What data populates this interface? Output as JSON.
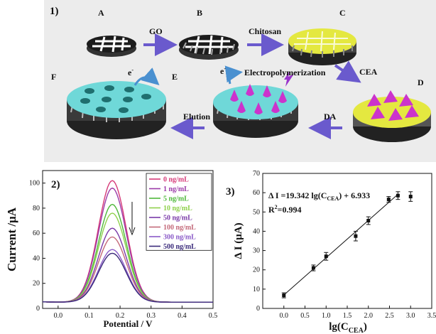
{
  "panel1": {
    "label": "1)",
    "steps": {
      "a": "A",
      "b": "B",
      "c": "C",
      "d": "D",
      "e": "E",
      "f": "F"
    },
    "arrows": {
      "a_b": "GO",
      "b_c": "Chitosan",
      "c_d": "CEA",
      "e_label": "Electropolymerization",
      "d_e": "DA",
      "e_f": "Elution"
    },
    "electron": "e",
    "electron_sup": "-",
    "colors": {
      "background": "#ececec",
      "electrode": "#1c1c1c",
      "chitosan": "#e4e840",
      "polymer": "#6fd8d8",
      "molecule": "#cc33cc",
      "arrow": "#6a5acd"
    }
  },
  "chart_data": [
    {
      "type": "line",
      "panel_label": "2)",
      "xlabel": "Potential / V",
      "ylabel": "Current /μA",
      "xlim": [
        -0.05,
        0.5
      ],
      "ylim": [
        0,
        110
      ],
      "x_ticks": [
        "0.0",
        "0.1",
        "0.2",
        "0.3",
        "0.4",
        "0.5"
      ],
      "y_ticks": [
        "0",
        "20",
        "40",
        "60",
        "80",
        "100"
      ],
      "legend_position": "top-right",
      "annotation": "arrow pointing down (decreasing peak current)",
      "series": [
        {
          "name": "0 ng/mL",
          "color": "#d63a78",
          "peak": 102,
          "baseline": 5
        },
        {
          "name": "1 ng/mL",
          "color": "#9b3aa8",
          "peak": 96,
          "baseline": 5
        },
        {
          "name": "5 ng/mL",
          "color": "#4eb83a",
          "peak": 83,
          "baseline": 5
        },
        {
          "name": "10 ng/mL",
          "color": "#8fd14c",
          "peak": 76,
          "baseline": 5
        },
        {
          "name": "50 ng/mL",
          "color": "#7a3aa8",
          "peak": 64,
          "baseline": 5
        },
        {
          "name": "100 ng/mL",
          "color": "#c46a7a",
          "peak": 57,
          "baseline": 5
        },
        {
          "name": "300 ng/mL",
          "color": "#8a5ac8",
          "peak": 47,
          "baseline": 5
        },
        {
          "name": "500 ng/mL",
          "color": "#3a2a7a",
          "peak": 44,
          "baseline": 5
        }
      ]
    },
    {
      "type": "scatter",
      "panel_label": "3)",
      "xlabel_main": "lg(C",
      "xlabel_sub": "CEA",
      "xlabel_end": ")",
      "ylabel": "Δ I (μA)",
      "xlim": [
        -0.5,
        3.5
      ],
      "ylim": [
        0,
        70
      ],
      "x_ticks": [
        "0.0",
        "0.5",
        "1.0",
        "1.5",
        "2.0",
        "2.5",
        "3.0",
        "3.5"
      ],
      "y_ticks": [
        "0",
        "10",
        "20",
        "30",
        "40",
        "50",
        "60",
        "70"
      ],
      "equation_main": "Δ I =19.342 lg(C",
      "equation_sub": "CEA",
      "equation_end": ") + 6.933",
      "r2_main": "R",
      "r2_sup": "2",
      "r2_end": "=0.994",
      "fit": {
        "slope": 19.342,
        "intercept": 6.933,
        "x_range": [
          0,
          2.7
        ]
      },
      "points": [
        {
          "x": 0.0,
          "y": 6.8,
          "err": 1.3
        },
        {
          "x": 0.7,
          "y": 21.0,
          "err": 1.5
        },
        {
          "x": 1.0,
          "y": 27.0,
          "err": 2.0
        },
        {
          "x": 1.7,
          "y": 37.5,
          "err": 2.5
        },
        {
          "x": 2.0,
          "y": 45.5,
          "err": 2.0
        },
        {
          "x": 2.48,
          "y": 56.5,
          "err": 1.5
        },
        {
          "x": 2.7,
          "y": 58.5,
          "err": 2.0
        },
        {
          "x": 3.0,
          "y": 58.0,
          "err": 2.5
        }
      ]
    }
  ]
}
